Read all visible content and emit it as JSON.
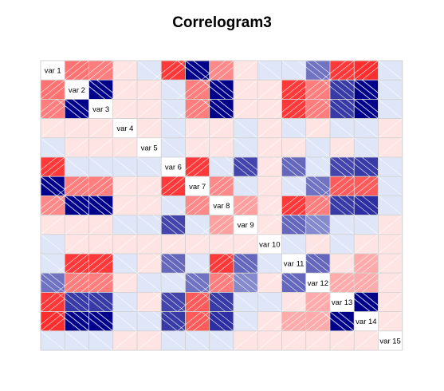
{
  "chart_data": {
    "type": "heatmap",
    "title": "Correlogram3",
    "variables": [
      "var 1",
      "var 2",
      "var 3",
      "var 4",
      "var 5",
      "var 6",
      "var 7",
      "var 8",
      "var 9",
      "var 10",
      "var 11",
      "var 12",
      "var 13",
      "var 14",
      "var 15"
    ],
    "panel": {
      "lower": "shade",
      "upper": "shade",
      "diagonal": "variable names"
    },
    "color_scale": {
      "negative": "#00008B",
      "zero": "#FFFFFF",
      "positive": "#FF0000"
    },
    "matrix": [
      [
        1.0,
        0.5,
        0.45,
        0.1,
        -0.1,
        0.75,
        -0.95,
        0.4,
        0.1,
        -0.1,
        -0.1,
        -0.5,
        0.75,
        0.8,
        -0.1
      ],
      [
        0.5,
        1.0,
        -0.95,
        0.1,
        0.1,
        -0.1,
        0.45,
        -0.95,
        0.1,
        0.1,
        0.75,
        0.45,
        -0.75,
        -0.9,
        -0.1
      ],
      [
        0.45,
        -0.95,
        1.0,
        0.1,
        0.1,
        -0.1,
        0.45,
        -0.95,
        0.1,
        0.1,
        0.75,
        0.45,
        -0.75,
        -0.9,
        -0.1
      ],
      [
        0.1,
        0.1,
        0.1,
        1.0,
        0.1,
        -0.1,
        0.1,
        0.1,
        -0.1,
        0.1,
        -0.1,
        0.1,
        -0.1,
        -0.1,
        0.1
      ],
      [
        -0.1,
        0.1,
        0.1,
        0.1,
        1.0,
        -0.1,
        0.1,
        0.1,
        -0.1,
        0.1,
        0.1,
        -0.1,
        0.1,
        -0.1,
        0.1
      ],
      [
        0.75,
        -0.1,
        -0.1,
        -0.1,
        -0.1,
        1.0,
        0.75,
        -0.1,
        -0.7,
        0.1,
        -0.55,
        -0.1,
        -0.7,
        -0.75,
        -0.1
      ],
      [
        -0.95,
        0.45,
        0.45,
        0.1,
        0.1,
        0.75,
        1.0,
        0.4,
        -0.1,
        0.1,
        -0.1,
        -0.5,
        0.6,
        0.6,
        -0.1
      ],
      [
        0.4,
        -0.95,
        -0.95,
        0.1,
        0.1,
        -0.1,
        0.4,
        1.0,
        0.3,
        0.1,
        0.75,
        0.45,
        -0.75,
        -0.8,
        -0.1
      ],
      [
        0.1,
        0.1,
        0.1,
        -0.1,
        -0.1,
        -0.7,
        -0.1,
        0.3,
        1.0,
        0.1,
        -0.55,
        -0.4,
        -0.1,
        -0.1,
        0.1
      ],
      [
        -0.1,
        0.1,
        0.1,
        0.1,
        0.1,
        0.1,
        0.1,
        0.1,
        0.1,
        1.0,
        -0.1,
        0.1,
        -0.1,
        0.1,
        0.1
      ],
      [
        -0.1,
        0.75,
        0.75,
        -0.1,
        0.1,
        -0.55,
        -0.1,
        0.75,
        -0.55,
        -0.1,
        1.0,
        -0.55,
        0.1,
        0.25,
        0.1
      ],
      [
        -0.5,
        0.45,
        0.45,
        0.1,
        -0.1,
        -0.1,
        -0.5,
        0.45,
        -0.4,
        0.1,
        -0.55,
        1.0,
        0.25,
        0.25,
        0.1
      ],
      [
        0.75,
        -0.75,
        -0.75,
        -0.1,
        0.1,
        -0.7,
        0.6,
        -0.75,
        -0.1,
        -0.1,
        0.1,
        0.25,
        1.0,
        -0.95,
        0.1
      ],
      [
        0.8,
        -0.9,
        -0.9,
        -0.1,
        -0.1,
        -0.75,
        0.6,
        -0.8,
        -0.1,
        0.1,
        0.25,
        0.25,
        -0.95,
        1.0,
        0.1
      ],
      [
        -0.1,
        -0.1,
        -0.1,
        0.1,
        0.1,
        -0.1,
        -0.1,
        -0.1,
        0.1,
        0.1,
        0.1,
        0.1,
        0.1,
        0.1,
        1.0
      ]
    ]
  }
}
